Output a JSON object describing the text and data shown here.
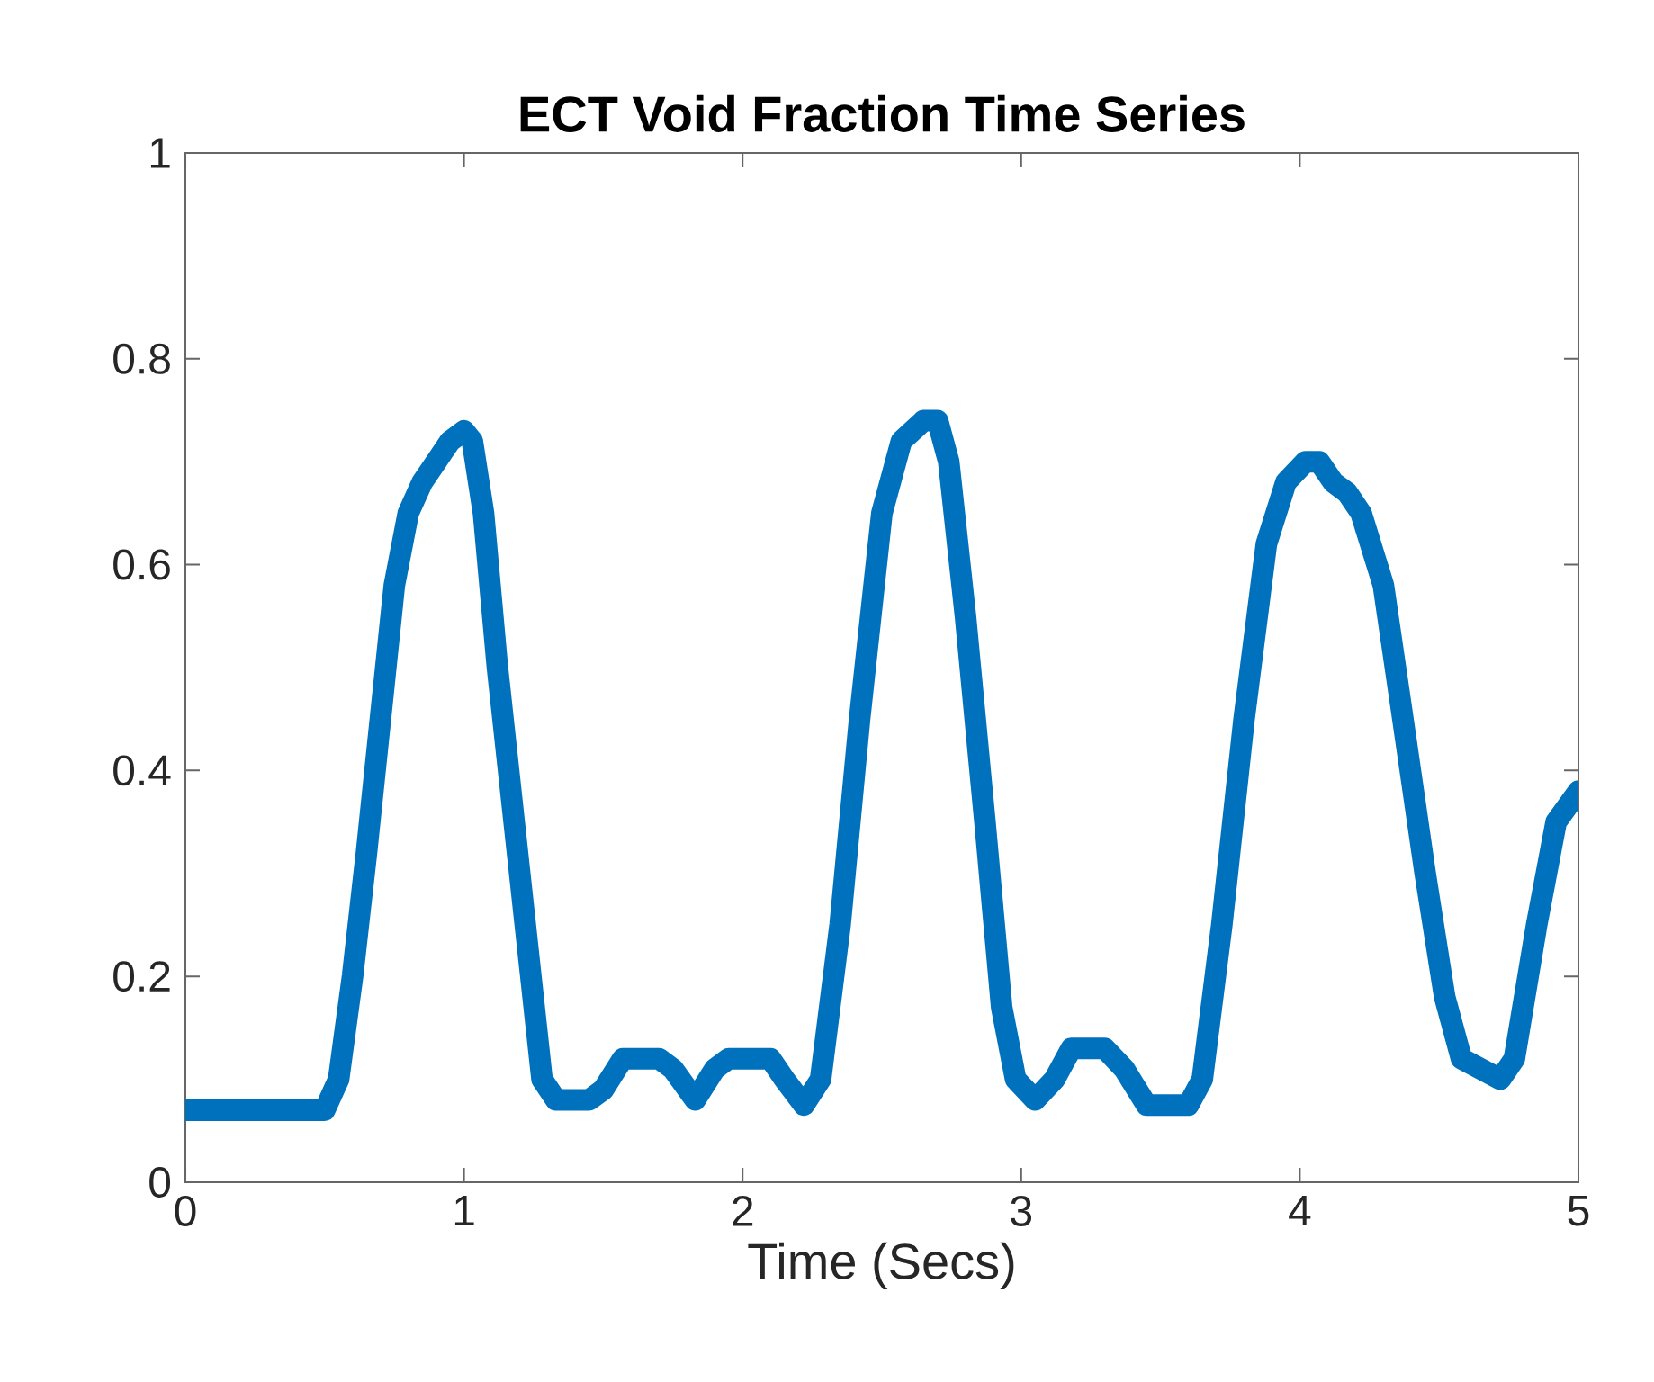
{
  "chart_data": {
    "type": "line",
    "title": "ECT Void Fraction Time Series",
    "xlabel": "Time (Secs)",
    "xlim": [
      0,
      5
    ],
    "ylim": [
      0,
      1
    ],
    "xticks": [
      0,
      1,
      2,
      3,
      4,
      5
    ],
    "yticks": [
      0,
      0.2,
      0.4,
      0.6,
      0.8,
      1
    ],
    "line_style": "solid",
    "series": [
      {
        "color": "#0072bd",
        "x": [
          0,
          0.3,
          0.5,
          0.55,
          0.6,
          0.65,
          0.7,
          0.75,
          0.8,
          0.85,
          0.9,
          0.95,
          1.0,
          1.03,
          1.07,
          1.12,
          1.18,
          1.24,
          1.28,
          1.33,
          1.45,
          1.5,
          1.57,
          1.7,
          1.75,
          1.83,
          1.9,
          1.95,
          2.1,
          2.15,
          2.22,
          2.28,
          2.35,
          2.42,
          2.5,
          2.57,
          2.65,
          2.7,
          2.74,
          2.8,
          2.87,
          2.93,
          2.98,
          3.05,
          3.12,
          3.18,
          3.3,
          3.37,
          3.45,
          3.6,
          3.65,
          3.72,
          3.8,
          3.88,
          3.95,
          4.02,
          4.07,
          4.12,
          4.17,
          4.22,
          4.3,
          4.37,
          4.45,
          4.52,
          4.58,
          4.65,
          4.72,
          4.77,
          4.85,
          4.92,
          5.0
        ],
        "values": [
          0.07,
          0.07,
          0.07,
          0.1,
          0.2,
          0.32,
          0.45,
          0.58,
          0.65,
          0.68,
          0.7,
          0.72,
          0.73,
          0.72,
          0.65,
          0.5,
          0.35,
          0.2,
          0.1,
          0.08,
          0.08,
          0.09,
          0.12,
          0.12,
          0.11,
          0.08,
          0.11,
          0.12,
          0.12,
          0.1,
          0.075,
          0.1,
          0.25,
          0.45,
          0.65,
          0.72,
          0.74,
          0.74,
          0.7,
          0.55,
          0.35,
          0.17,
          0.1,
          0.08,
          0.1,
          0.13,
          0.13,
          0.11,
          0.075,
          0.075,
          0.1,
          0.25,
          0.45,
          0.62,
          0.68,
          0.7,
          0.7,
          0.68,
          0.67,
          0.65,
          0.58,
          0.45,
          0.3,
          0.18,
          0.12,
          0.11,
          0.1,
          0.12,
          0.25,
          0.35,
          0.38
        ]
      }
    ]
  }
}
